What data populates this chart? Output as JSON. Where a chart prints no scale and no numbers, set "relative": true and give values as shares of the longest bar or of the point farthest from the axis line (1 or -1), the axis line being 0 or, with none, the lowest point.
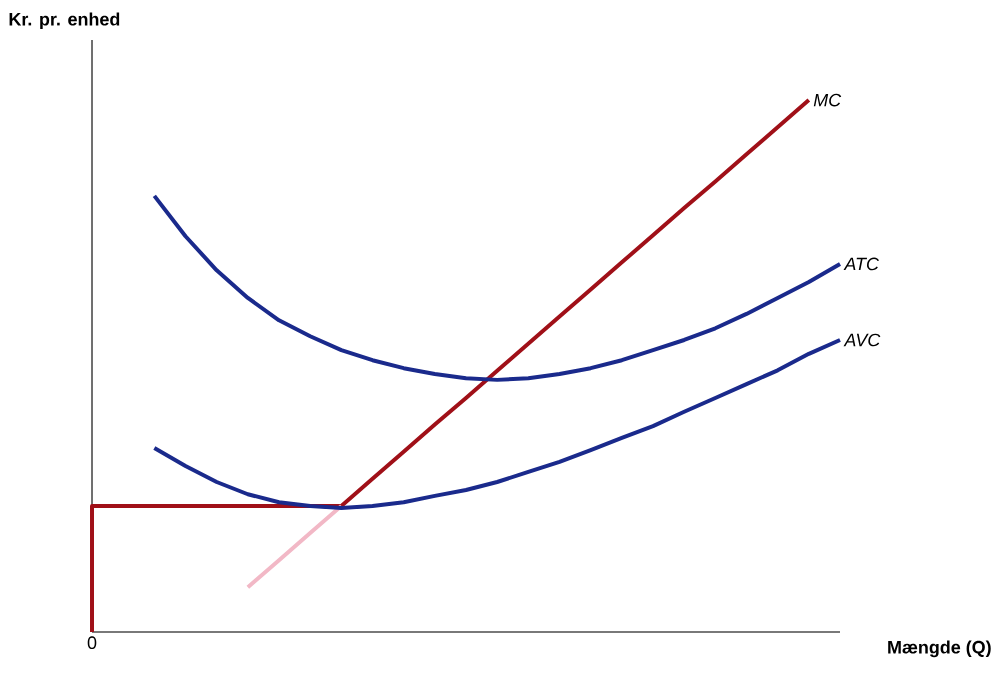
{
  "chart_data": {
    "type": "line",
    "relative": true,
    "xlabel": "Mængde (Q)",
    "ylabel": "Kr. pr. enhed",
    "annotations": [
      "0"
    ],
    "categories": [
      null,
      null,
      null,
      null,
      null,
      null,
      null,
      null,
      null,
      null,
      null,
      null,
      null,
      null,
      null,
      null,
      null,
      null,
      null,
      null,
      null,
      null,
      null,
      null,
      null
    ],
    "series": [
      {
        "type": "step",
        "color": "#a01018",
        "values": [
          0,
          null,
          null,
          null,
          null,
          null,
          null,
          null,
          0.237,
          null,
          null,
          null,
          null,
          null,
          null,
          null,
          null,
          null,
          null,
          null,
          null,
          null,
          null,
          null,
          null
        ]
      },
      {
        "name": "MC",
        "color": "#a01018",
        "values": [
          null,
          null,
          null,
          null,
          null,
          null,
          null,
          null,
          0.237,
          0.288,
          0.339,
          0.39,
          0.44,
          0.491,
          0.542,
          0.593,
          0.644,
          0.695,
          0.746,
          0.797,
          0.847,
          0.898,
          0.949,
          1.0,
          null
        ]
      },
      {
        "color": "#f2b8c6",
        "values": [
          null,
          null,
          null,
          null,
          null,
          0.084,
          0.135,
          0.186,
          0.237,
          null,
          null,
          null,
          null,
          null,
          null,
          null,
          null,
          null,
          null,
          null,
          null,
          null,
          null,
          null,
          null
        ]
      },
      {
        "name": "ATC",
        "color": "#1a2a8c",
        "values": [
          null,
          null,
          0.82,
          0.744,
          0.68,
          0.628,
          0.586,
          0.556,
          0.53,
          0.511,
          0.496,
          0.485,
          0.477,
          0.474,
          0.477,
          0.485,
          0.496,
          0.511,
          0.53,
          0.549,
          0.571,
          0.598,
          0.628,
          0.658,
          0.692
        ]
      },
      {
        "name": "AVC",
        "color": "#1a2a8c",
        "values": [
          null,
          null,
          0.346,
          0.312,
          0.282,
          0.259,
          0.244,
          0.237,
          0.233,
          0.237,
          0.244,
          0.256,
          0.267,
          0.282,
          0.301,
          0.32,
          0.342,
          0.365,
          0.387,
          0.414,
          0.44,
          0.466,
          0.492,
          0.523,
          0.549
        ]
      }
    ]
  }
}
